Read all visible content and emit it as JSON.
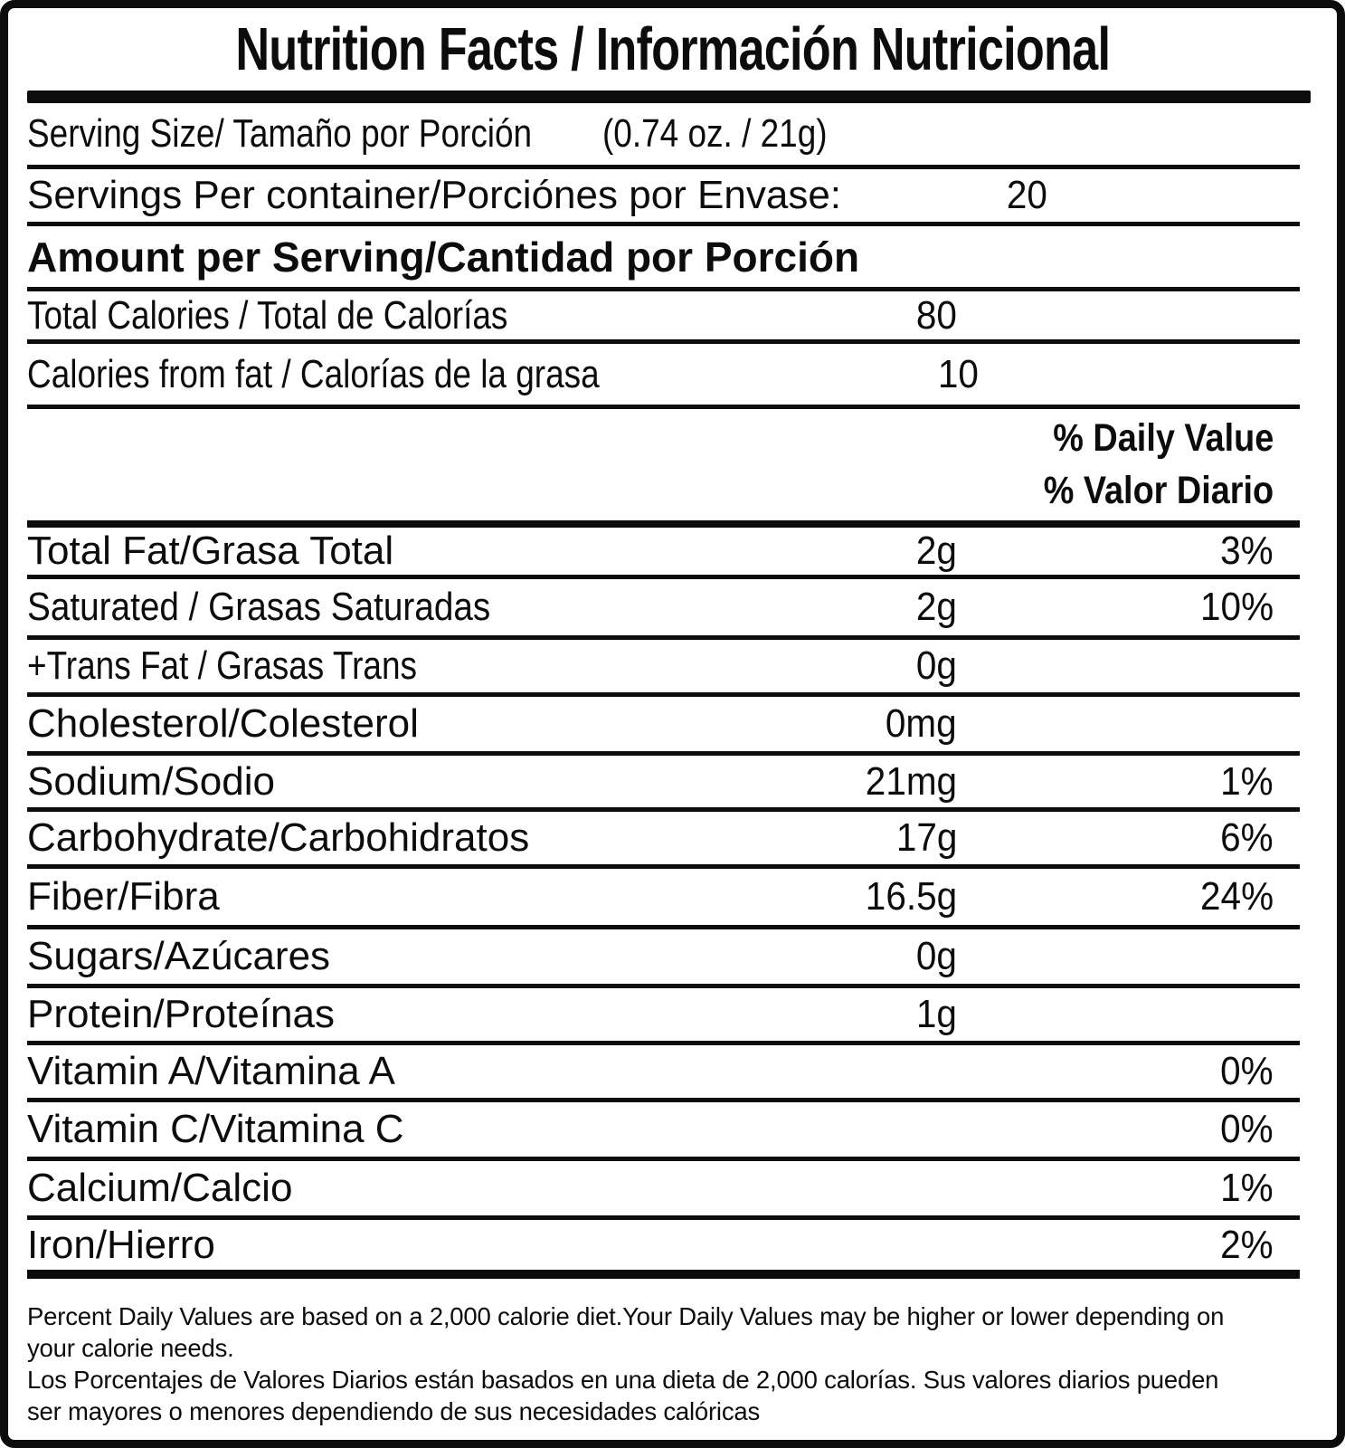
{
  "label": {
    "title": "Nutrition Facts / Información Nutricional",
    "serving_size": {
      "label": "Serving Size/ Tamaño por Porción",
      "value": "(0.74 oz. / 21g)"
    },
    "servings_per_container": {
      "label": "Servings Per container/Porciónes por Envase:",
      "value": "20"
    },
    "amount_header": "Amount per Serving/Cantidad por Porción",
    "calories_rows": [
      {
        "label": "Total Calories / Total de Calorías",
        "amount": "80"
      },
      {
        "label": "Calories from fat / Calorías de la grasa",
        "amount": "10"
      }
    ],
    "daily_value_header": {
      "en": "% Daily Value",
      "es": "% Valor Diario"
    },
    "nutrients": [
      {
        "label": "Total Fat/Grasa Total",
        "amount": "2g",
        "dv": "3%"
      },
      {
        "label": "Saturated / Grasas Saturadas",
        "amount": "2g",
        "dv": "10%"
      },
      {
        "label": "+Trans Fat / Grasas Trans",
        "amount": "0g",
        "dv": ""
      },
      {
        "label": "Cholesterol/Colesterol",
        "amount": "0mg",
        "dv": ""
      },
      {
        "label": "Sodium/Sodio",
        "amount": "21mg",
        "dv": "1%"
      },
      {
        "label": "Carbohydrate/Carbohidratos",
        "amount": "17g",
        "dv": "6%"
      },
      {
        "label": "Fiber/Fibra",
        "amount": "16.5g",
        "dv": "24%"
      },
      {
        "label": "Sugars/Azúcares",
        "amount": "0g",
        "dv": ""
      },
      {
        "label": "Protein/Proteínas",
        "amount": "1g",
        "dv": ""
      },
      {
        "label": "Vitamin A/Vitamina A",
        "amount": "",
        "dv": "0%"
      },
      {
        "label": "Vitamin C/Vitamina C",
        "amount": "",
        "dv": "0%"
      },
      {
        "label": "Calcium/Calcio",
        "amount": "",
        "dv": "1%"
      },
      {
        "label": "Iron/Hierro",
        "amount": "",
        "dv": "2%"
      }
    ],
    "footnote": {
      "en": "Percent Daily Values are based on a 2,000 calorie diet.Your Daily Values may be higher or lower depending on your calorie needs.",
      "es": "Los Porcentajes de Valores Diarios están basados en una dieta de 2,000 calorías. Sus valores diarios pueden ser mayores o menores dependiendo de sus necesidades calóricas"
    }
  }
}
